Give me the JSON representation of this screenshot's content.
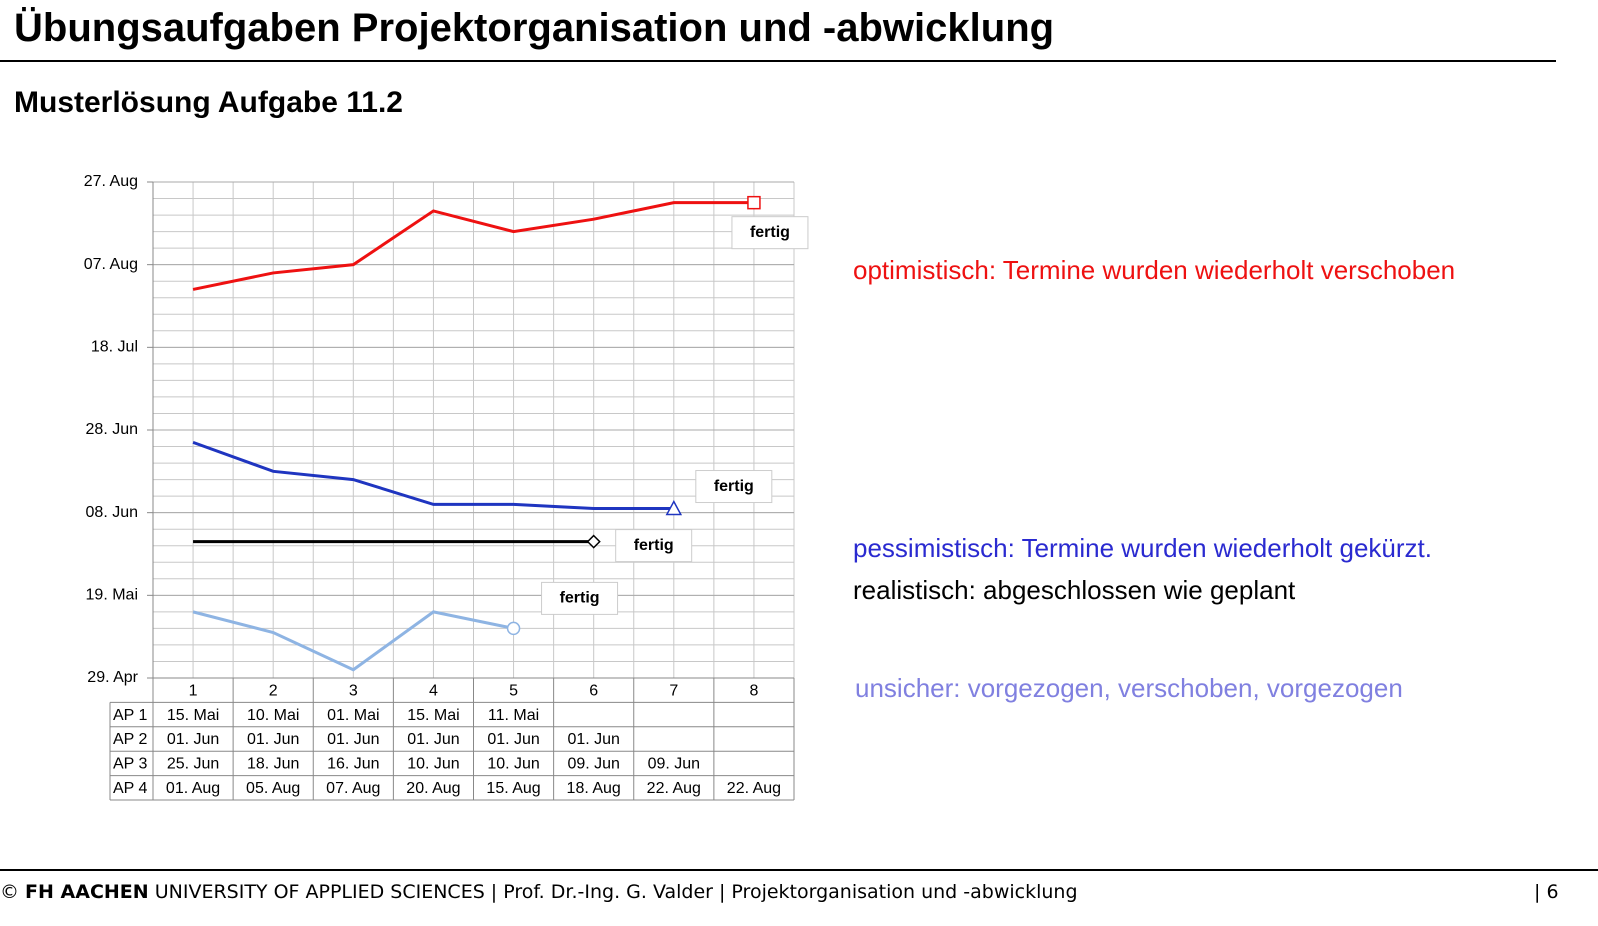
{
  "header": {
    "title": "Übungsaufgaben Projektorganisation und -abwicklung",
    "subtitle": "Musterlösung Aufgabe 11.2"
  },
  "chart_data": {
    "type": "line",
    "categories": [
      "1",
      "2",
      "3",
      "4",
      "5",
      "6",
      "7",
      "8"
    ],
    "ylim": [
      119,
      239
    ],
    "yticks": [
      {
        "value": 119,
        "label": "29. Apr"
      },
      {
        "value": 139,
        "label": "19. Mai"
      },
      {
        "value": 159,
        "label": "08. Jun"
      },
      {
        "value": 179,
        "label": "28. Jun"
      },
      {
        "value": 199,
        "label": "18. Jul"
      },
      {
        "value": 219,
        "label": "07. Aug"
      },
      {
        "value": 239,
        "label": "27. Aug"
      }
    ],
    "grid": true,
    "series": [
      {
        "name": "AP 1",
        "color": "#8eb4e3",
        "marker": "circle",
        "annotation": "fertig",
        "values": [
          135,
          130,
          121,
          135,
          131,
          null,
          null,
          null
        ],
        "value_labels": [
          "15. Mai",
          "10. Mai",
          "01. Mai",
          "15. Mai",
          "11. Mai",
          null,
          null,
          null
        ]
      },
      {
        "name": "AP 2",
        "color": "#000000",
        "marker": "diamond",
        "annotation": "fertig",
        "values": [
          152,
          152,
          152,
          152,
          152,
          152,
          null,
          null
        ],
        "value_labels": [
          "01. Jun",
          "01. Jun",
          "01. Jun",
          "01. Jun",
          "01. Jun",
          "01. Jun",
          null,
          null
        ]
      },
      {
        "name": "AP 3",
        "color": "#1f35c0",
        "marker": "triangle",
        "annotation": "fertig",
        "values": [
          176,
          169,
          167,
          161,
          161,
          160,
          160,
          null
        ],
        "value_labels": [
          "25. Jun",
          "18. Jun",
          "16. Jun",
          "10. Jun",
          "10. Jun",
          "09. Jun",
          "09. Jun",
          null
        ]
      },
      {
        "name": "AP 4",
        "color": "#ee1111",
        "marker": "square",
        "annotation": "fertig",
        "values": [
          213,
          217,
          219,
          232,
          227,
          230,
          234,
          234
        ],
        "value_labels": [
          "01. Aug",
          "05. Aug",
          "07. Aug",
          "20. Aug",
          "15. Aug",
          "18. Aug",
          "22. Aug",
          "22. Aug"
        ]
      }
    ]
  },
  "explanations": [
    "optimistisch: Termine wurden wiederholt verschoben",
    "pessimistisch: Termine wurden wiederholt gekürzt.",
    "realistisch: abgeschlossen wie geplant",
    "unsicher: vorgezogen, verschoben, vorgezogen"
  ],
  "footer": {
    "copyright": "©",
    "org": "FH AACHEN",
    "text": "UNIVERSITY OF APPLIED SCIENCES | Prof. Dr.-Ing. G. Valder | Projektorganisation und -abwicklung",
    "page": "| 6"
  }
}
